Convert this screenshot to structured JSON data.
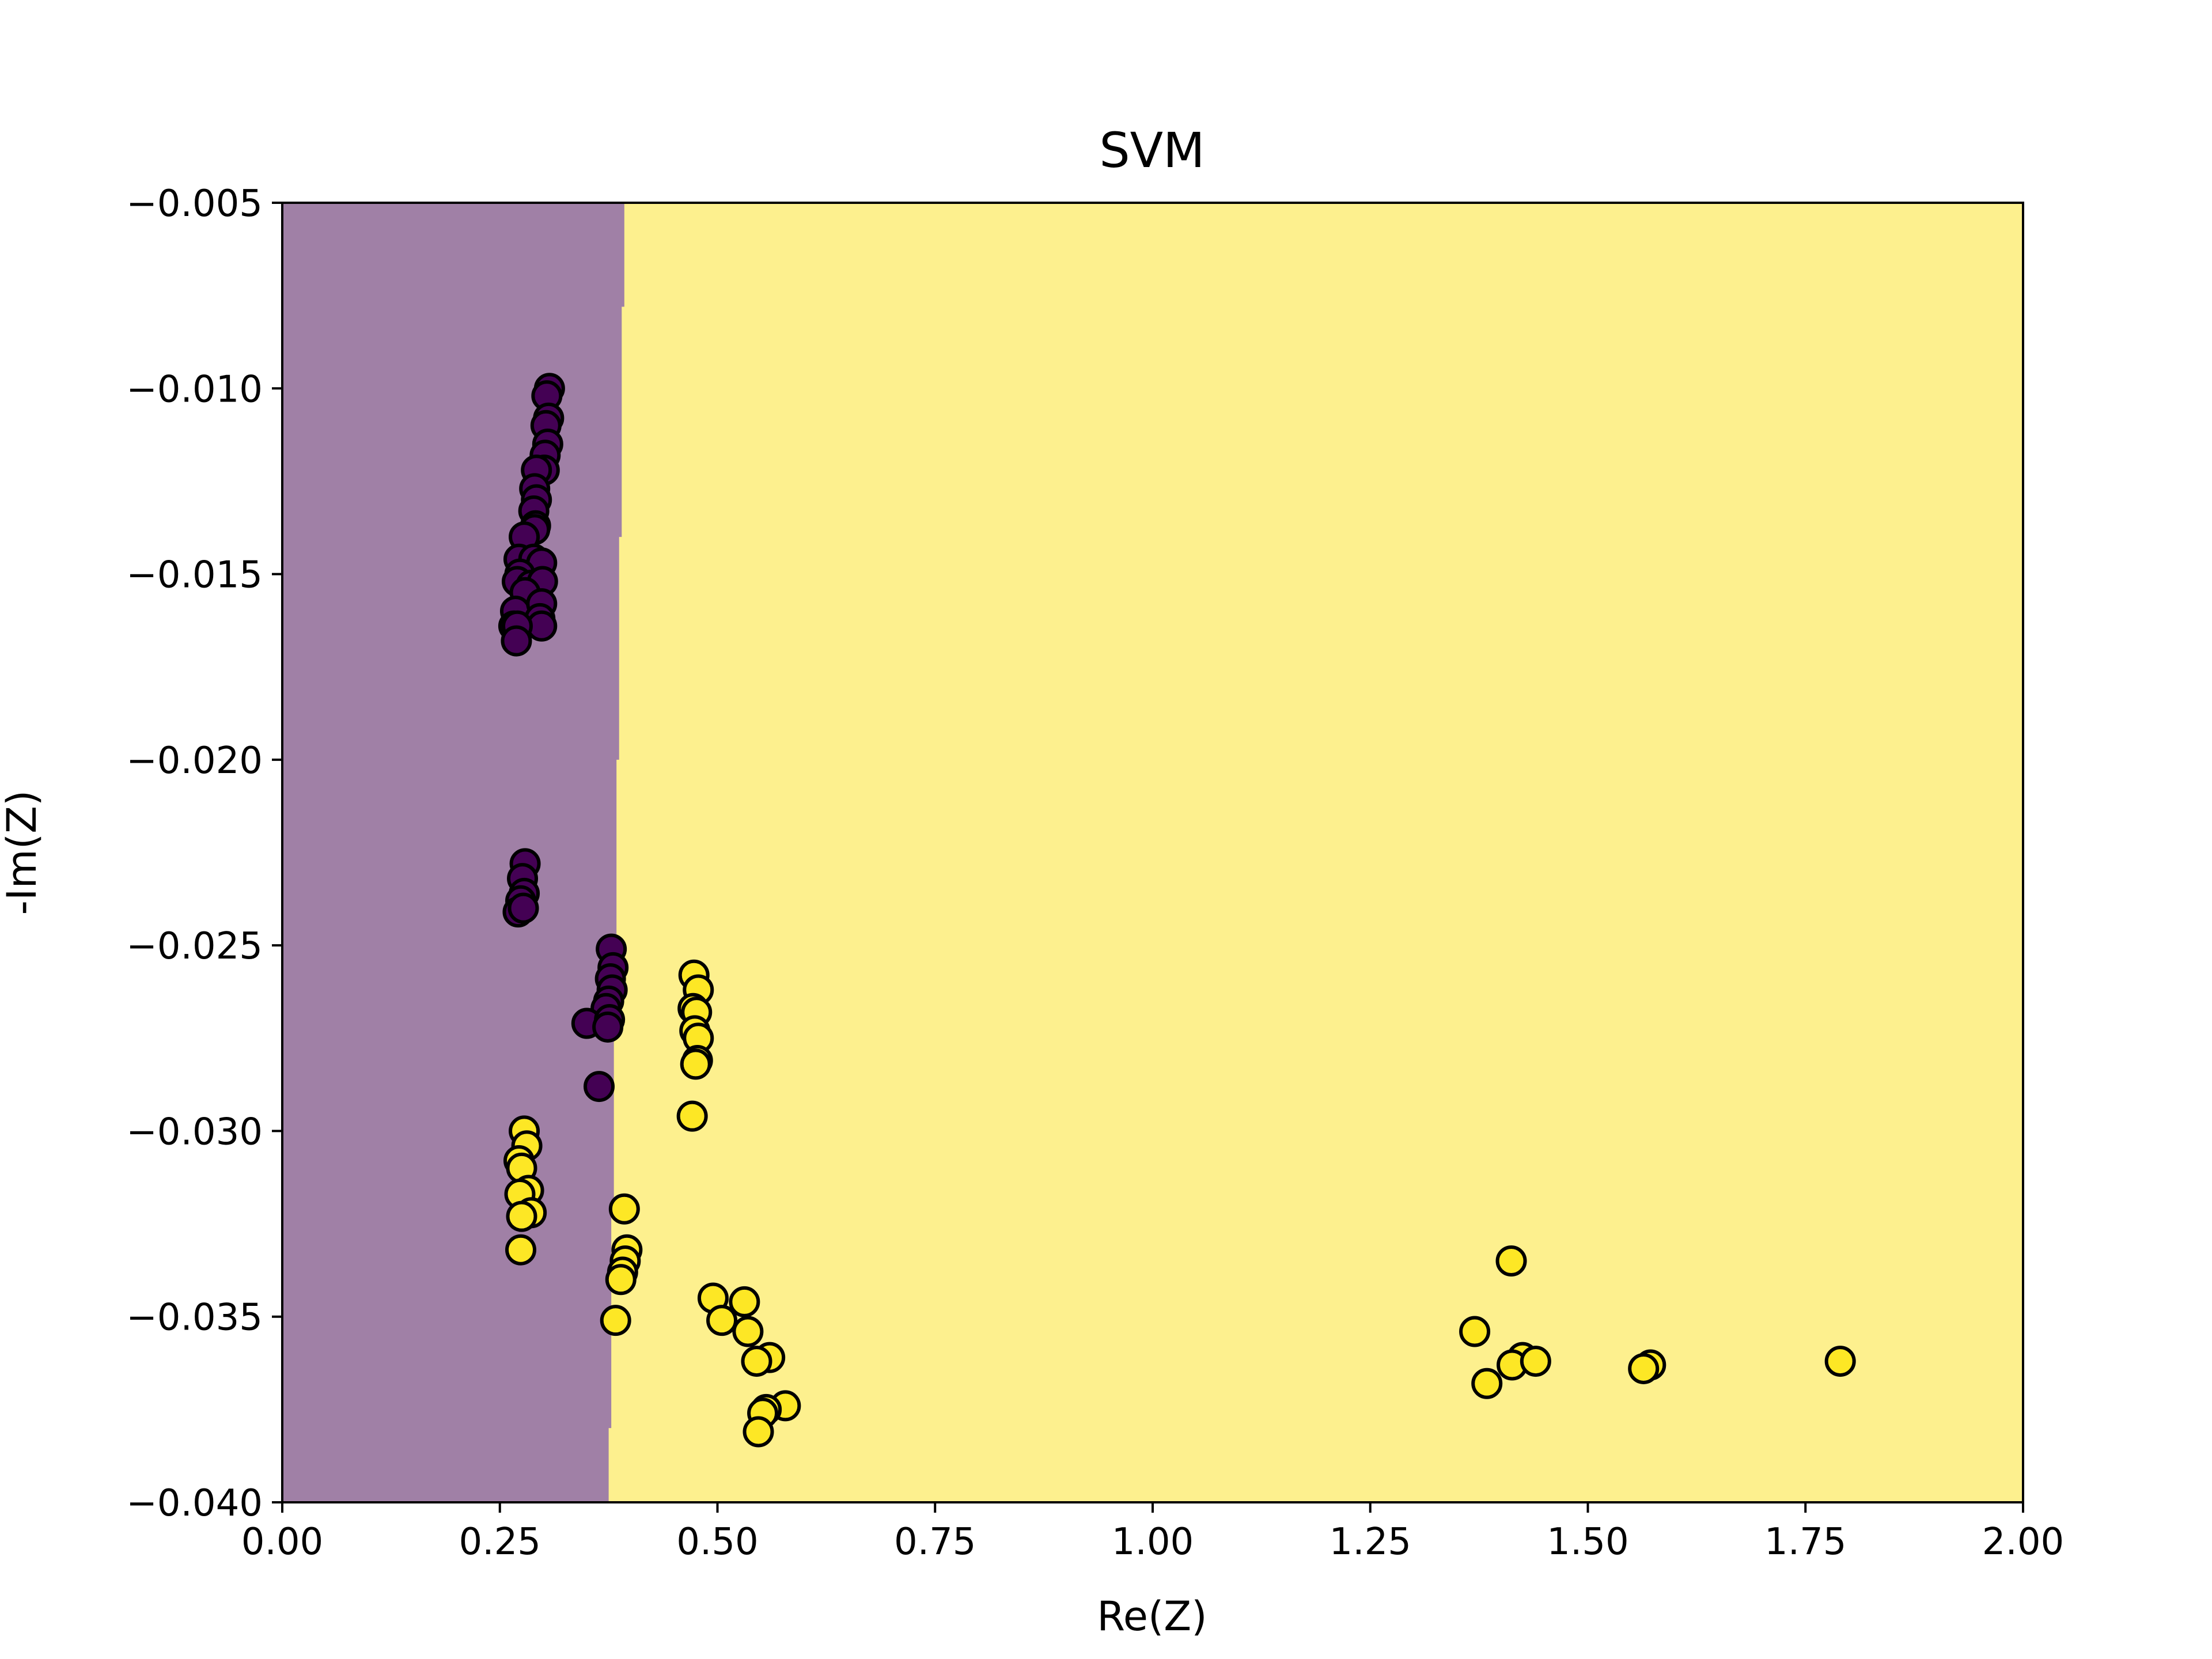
{
  "chart_data": {
    "type": "scatter",
    "title": "SVM",
    "xlabel": "Re(Z)",
    "ylabel": "-Im(Z)",
    "xlim": [
      0.0,
      2.0
    ],
    "ylim": [
      -0.04,
      -0.005
    ],
    "xticks": [
      {
        "value": 0.0,
        "label": "0.00"
      },
      {
        "value": 0.25,
        "label": "0.25"
      },
      {
        "value": 0.5,
        "label": "0.50"
      },
      {
        "value": 0.75,
        "label": "0.75"
      },
      {
        "value": 1.0,
        "label": "1.00"
      },
      {
        "value": 1.25,
        "label": "1.25"
      },
      {
        "value": 1.5,
        "label": "1.50"
      },
      {
        "value": 1.75,
        "label": "1.75"
      },
      {
        "value": 2.0,
        "label": "2.00"
      }
    ],
    "yticks": [
      {
        "value": -0.005,
        "label": "−0.005"
      },
      {
        "value": -0.01,
        "label": "−0.010"
      },
      {
        "value": -0.015,
        "label": "−0.015"
      },
      {
        "value": -0.02,
        "label": "−0.020"
      },
      {
        "value": -0.025,
        "label": "−0.025"
      },
      {
        "value": -0.03,
        "label": "−0.030"
      },
      {
        "value": -0.035,
        "label": "−0.035"
      },
      {
        "value": -0.04,
        "label": "−0.040"
      }
    ],
    "grid": false,
    "colors": {
      "class0_region": "#a080a6",
      "class1_region": "#fdf08e",
      "class0_point": "#440154",
      "class1_point": "#fde725",
      "point_edge": "#000000"
    },
    "decision_boundary": [
      {
        "y": -0.005,
        "x": 0.393
      },
      {
        "y": -0.0078,
        "x": 0.393
      },
      {
        "y": -0.0078,
        "x": 0.39
      },
      {
        "y": -0.014,
        "x": 0.39
      },
      {
        "y": -0.014,
        "x": 0.387
      },
      {
        "y": -0.02,
        "x": 0.387
      },
      {
        "y": -0.02,
        "x": 0.384
      },
      {
        "y": -0.026,
        "x": 0.384
      },
      {
        "y": -0.026,
        "x": 0.381
      },
      {
        "y": -0.032,
        "x": 0.381
      },
      {
        "y": -0.032,
        "x": 0.378
      },
      {
        "y": -0.038,
        "x": 0.378
      },
      {
        "y": -0.038,
        "x": 0.375
      },
      {
        "y": -0.04,
        "x": 0.375
      }
    ],
    "series": [
      {
        "class": 0,
        "points": [
          [
            0.307,
            -0.01
          ],
          [
            0.304,
            -0.0102
          ],
          [
            0.306,
            -0.0108
          ],
          [
            0.303,
            -0.011
          ],
          [
            0.305,
            -0.0115
          ],
          [
            0.302,
            -0.0118
          ],
          [
            0.301,
            -0.0122
          ],
          [
            0.292,
            -0.0122
          ],
          [
            0.29,
            -0.0127
          ],
          [
            0.292,
            -0.013
          ],
          [
            0.289,
            -0.0133
          ],
          [
            0.291,
            -0.0137
          ],
          [
            0.29,
            -0.0138
          ],
          [
            0.278,
            -0.014
          ],
          [
            0.272,
            -0.0146
          ],
          [
            0.289,
            -0.0146
          ],
          [
            0.298,
            -0.0147
          ],
          [
            0.273,
            -0.015
          ],
          [
            0.27,
            -0.0152
          ],
          [
            0.286,
            -0.0153
          ],
          [
            0.299,
            -0.0152
          ],
          [
            0.279,
            -0.0155
          ],
          [
            0.268,
            -0.016
          ],
          [
            0.298,
            -0.0158
          ],
          [
            0.296,
            -0.0162
          ],
          [
            0.298,
            -0.0164
          ],
          [
            0.266,
            -0.0164
          ],
          [
            0.27,
            -0.0164
          ],
          [
            0.269,
            -0.0168
          ],
          [
            0.279,
            -0.0228
          ],
          [
            0.276,
            -0.0232
          ],
          [
            0.278,
            -0.0236
          ],
          [
            0.274,
            -0.0238
          ],
          [
            0.271,
            -0.0241
          ],
          [
            0.277,
            -0.024
          ],
          [
            0.378,
            -0.0251
          ],
          [
            0.38,
            -0.0256
          ],
          [
            0.377,
            -0.0259
          ],
          [
            0.379,
            -0.0262
          ],
          [
            0.375,
            -0.0265
          ],
          [
            0.372,
            -0.0267
          ],
          [
            0.35,
            -0.0271
          ],
          [
            0.376,
            -0.027
          ],
          [
            0.374,
            -0.0272
          ],
          [
            0.364,
            -0.0288
          ]
        ]
      },
      {
        "class": 1,
        "points": [
          [
            0.278,
            -0.03
          ],
          [
            0.281,
            -0.0304
          ],
          [
            0.272,
            -0.0308
          ],
          [
            0.275,
            -0.031
          ],
          [
            0.283,
            -0.0316
          ],
          [
            0.273,
            -0.0317
          ],
          [
            0.286,
            -0.0322
          ],
          [
            0.275,
            -0.0323
          ],
          [
            0.274,
            -0.0332
          ],
          [
            0.393,
            -0.0321
          ],
          [
            0.396,
            -0.0332
          ],
          [
            0.394,
            -0.0335
          ],
          [
            0.391,
            -0.0338
          ],
          [
            0.389,
            -0.034
          ],
          [
            0.383,
            -0.0351
          ],
          [
            0.473,
            -0.0258
          ],
          [
            0.478,
            -0.0262
          ],
          [
            0.472,
            -0.0267
          ],
          [
            0.476,
            -0.0268
          ],
          [
            0.474,
            -0.0273
          ],
          [
            0.478,
            -0.0275
          ],
          [
            0.477,
            -0.0281
          ],
          [
            0.475,
            -0.0282
          ],
          [
            0.471,
            -0.0296
          ],
          [
            0.495,
            -0.0345
          ],
          [
            0.531,
            -0.0346
          ],
          [
            0.505,
            -0.0351
          ],
          [
            0.535,
            -0.0354
          ],
          [
            0.56,
            -0.0361
          ],
          [
            0.545,
            -0.0362
          ],
          [
            0.578,
            -0.0374
          ],
          [
            0.556,
            -0.0375
          ],
          [
            0.552,
            -0.0376
          ],
          [
            0.547,
            -0.0381
          ],
          [
            1.412,
            -0.0335
          ],
          [
            1.37,
            -0.0354
          ],
          [
            1.425,
            -0.0361
          ],
          [
            1.413,
            -0.0363
          ],
          [
            1.44,
            -0.0362
          ],
          [
            1.384,
            -0.0368
          ],
          [
            1.572,
            -0.0363
          ],
          [
            1.564,
            -0.0364
          ],
          [
            1.79,
            -0.0362
          ]
        ]
      }
    ]
  }
}
